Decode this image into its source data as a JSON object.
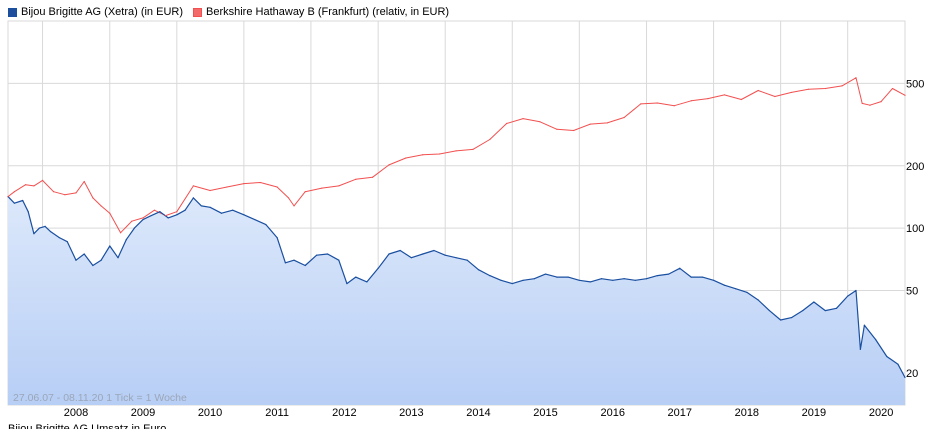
{
  "legend": {
    "series1": "Bijou Brigitte AG (Xetra) (in EUR)",
    "series2": "Berkshire Hathaway B (Frankfurt) (relativ, in EUR)"
  },
  "colors": {
    "series1_line": "#1a4fa0",
    "series1_swatch": "#1f4f9c",
    "series1_fill_top": "#dce8fb",
    "series1_fill_bottom": "#b7cef5",
    "series2_line": "#f25050",
    "series2_swatch": "#f46a6a",
    "grid": "#d9d9d9"
  },
  "footer_note": "27.06.07 - 08.11.20   1 Tick = 1 Woche",
  "bottom_cut_text": "Bijou Brigitte AG Umsatz in Euro",
  "chart_data": {
    "type": "line",
    "x_axis": {
      "type": "date",
      "range": [
        "2007-06-27",
        "2020-11-08"
      ],
      "tick_labels": [
        "2008",
        "2009",
        "2010",
        "2011",
        "2012",
        "2013",
        "2014",
        "2015",
        "2016",
        "2017",
        "2018",
        "2019",
        "2020"
      ]
    },
    "y_axis": {
      "scale": "log",
      "tick_values": [
        20,
        50,
        100,
        200,
        500
      ],
      "range": [
        14,
        1000
      ],
      "position": "right"
    },
    "grid": true,
    "legend_position": "top-left",
    "series": [
      {
        "name": "Bijou Brigitte AG (Xetra) (in EUR)",
        "area_fill": true,
        "points": [
          [
            "2007-06-27",
            142
          ],
          [
            "2007-08-01",
            132
          ],
          [
            "2007-09-15",
            136
          ],
          [
            "2007-10-15",
            120
          ],
          [
            "2007-11-15",
            94
          ],
          [
            "2007-12-15",
            100
          ],
          [
            "2008-01-15",
            102
          ],
          [
            "2008-02-15",
            96
          ],
          [
            "2008-04-01",
            90
          ],
          [
            "2008-05-15",
            86
          ],
          [
            "2008-07-01",
            70
          ],
          [
            "2008-08-15",
            75
          ],
          [
            "2008-10-01",
            66
          ],
          [
            "2008-11-15",
            70
          ],
          [
            "2009-01-01",
            82
          ],
          [
            "2009-02-15",
            72
          ],
          [
            "2009-04-01",
            88
          ],
          [
            "2009-05-15",
            100
          ],
          [
            "2009-07-01",
            110
          ],
          [
            "2009-08-15",
            115
          ],
          [
            "2009-10-01",
            120
          ],
          [
            "2009-11-15",
            112
          ],
          [
            "2010-01-01",
            116
          ],
          [
            "2010-02-15",
            122
          ],
          [
            "2010-04-01",
            140
          ],
          [
            "2010-05-15",
            128
          ],
          [
            "2010-07-01",
            126
          ],
          [
            "2010-09-01",
            118
          ],
          [
            "2010-11-01",
            122
          ],
          [
            "2011-01-01",
            116
          ],
          [
            "2011-03-01",
            110
          ],
          [
            "2011-05-01",
            104
          ],
          [
            "2011-07-01",
            90
          ],
          [
            "2011-08-15",
            68
          ],
          [
            "2011-10-01",
            70
          ],
          [
            "2011-12-01",
            66
          ],
          [
            "2012-02-01",
            74
          ],
          [
            "2012-04-01",
            75
          ],
          [
            "2012-06-01",
            70
          ],
          [
            "2012-07-15",
            54
          ],
          [
            "2012-09-01",
            58
          ],
          [
            "2012-11-01",
            55
          ],
          [
            "2013-01-01",
            64
          ],
          [
            "2013-03-01",
            75
          ],
          [
            "2013-05-01",
            78
          ],
          [
            "2013-07-01",
            72
          ],
          [
            "2013-09-01",
            75
          ],
          [
            "2013-11-01",
            78
          ],
          [
            "2014-01-01",
            74
          ],
          [
            "2014-03-01",
            72
          ],
          [
            "2014-05-01",
            70
          ],
          [
            "2014-07-01",
            63
          ],
          [
            "2014-09-01",
            59
          ],
          [
            "2014-11-01",
            56
          ],
          [
            "2015-01-01",
            54
          ],
          [
            "2015-03-01",
            56
          ],
          [
            "2015-05-01",
            57
          ],
          [
            "2015-07-01",
            60
          ],
          [
            "2015-09-01",
            58
          ],
          [
            "2015-11-01",
            58
          ],
          [
            "2016-01-01",
            56
          ],
          [
            "2016-03-01",
            55
          ],
          [
            "2016-05-01",
            57
          ],
          [
            "2016-07-01",
            56
          ],
          [
            "2016-09-01",
            57
          ],
          [
            "2016-11-01",
            56
          ],
          [
            "2017-01-01",
            57
          ],
          [
            "2017-03-01",
            59
          ],
          [
            "2017-05-01",
            60
          ],
          [
            "2017-07-01",
            64
          ],
          [
            "2017-09-01",
            58
          ],
          [
            "2017-11-01",
            58
          ],
          [
            "2018-01-01",
            56
          ],
          [
            "2018-03-01",
            53
          ],
          [
            "2018-05-01",
            51
          ],
          [
            "2018-07-01",
            49
          ],
          [
            "2018-09-01",
            45
          ],
          [
            "2018-11-01",
            40
          ],
          [
            "2019-01-01",
            36
          ],
          [
            "2019-03-01",
            37
          ],
          [
            "2019-05-01",
            40
          ],
          [
            "2019-07-01",
            44
          ],
          [
            "2019-09-01",
            40
          ],
          [
            "2019-11-01",
            41
          ],
          [
            "2020-01-01",
            47
          ],
          [
            "2020-02-15",
            50
          ],
          [
            "2020-03-10",
            26
          ],
          [
            "2020-04-01",
            34
          ],
          [
            "2020-06-01",
            29
          ],
          [
            "2020-08-01",
            24
          ],
          [
            "2020-10-01",
            22
          ],
          [
            "2020-11-08",
            19
          ]
        ]
      },
      {
        "name": "Berkshire Hathaway B (Frankfurt) (relativ, in EUR)",
        "area_fill": false,
        "points": [
          [
            "2007-06-27",
            142
          ],
          [
            "2007-08-01",
            150
          ],
          [
            "2007-10-01",
            162
          ],
          [
            "2007-11-15",
            160
          ],
          [
            "2008-01-01",
            170
          ],
          [
            "2008-03-01",
            150
          ],
          [
            "2008-05-01",
            145
          ],
          [
            "2008-07-01",
            148
          ],
          [
            "2008-08-15",
            168
          ],
          [
            "2008-10-01",
            140
          ],
          [
            "2008-11-15",
            128
          ],
          [
            "2009-01-01",
            118
          ],
          [
            "2009-03-01",
            95
          ],
          [
            "2009-05-01",
            108
          ],
          [
            "2009-07-01",
            112
          ],
          [
            "2009-09-01",
            122
          ],
          [
            "2009-11-01",
            115
          ],
          [
            "2010-01-01",
            120
          ],
          [
            "2010-04-01",
            160
          ],
          [
            "2010-07-01",
            152
          ],
          [
            "2010-10-01",
            158
          ],
          [
            "2011-01-01",
            164
          ],
          [
            "2011-04-01",
            166
          ],
          [
            "2011-07-01",
            158
          ],
          [
            "2011-09-01",
            140
          ],
          [
            "2011-10-01",
            128
          ],
          [
            "2011-12-01",
            150
          ],
          [
            "2012-03-01",
            156
          ],
          [
            "2012-06-01",
            160
          ],
          [
            "2012-09-01",
            172
          ],
          [
            "2012-12-01",
            176
          ],
          [
            "2013-03-01",
            202
          ],
          [
            "2013-06-01",
            218
          ],
          [
            "2013-09-01",
            226
          ],
          [
            "2013-12-01",
            228
          ],
          [
            "2014-03-01",
            236
          ],
          [
            "2014-06-01",
            240
          ],
          [
            "2014-09-01",
            268
          ],
          [
            "2014-12-01",
            320
          ],
          [
            "2015-03-01",
            338
          ],
          [
            "2015-06-01",
            326
          ],
          [
            "2015-09-01",
            300
          ],
          [
            "2015-12-01",
            296
          ],
          [
            "2016-03-01",
            318
          ],
          [
            "2016-06-01",
            322
          ],
          [
            "2016-09-01",
            342
          ],
          [
            "2016-12-01",
            398
          ],
          [
            "2017-03-01",
            402
          ],
          [
            "2017-06-01",
            390
          ],
          [
            "2017-09-01",
            412
          ],
          [
            "2017-12-01",
            422
          ],
          [
            "2018-03-01",
            440
          ],
          [
            "2018-06-01",
            418
          ],
          [
            "2018-09-01",
            462
          ],
          [
            "2018-12-01",
            432
          ],
          [
            "2019-03-01",
            452
          ],
          [
            "2019-06-01",
            468
          ],
          [
            "2019-09-01",
            472
          ],
          [
            "2019-12-01",
            486
          ],
          [
            "2020-02-15",
            532
          ],
          [
            "2020-03-20",
            400
          ],
          [
            "2020-05-01",
            392
          ],
          [
            "2020-07-01",
            408
          ],
          [
            "2020-09-01",
            472
          ],
          [
            "2020-11-08",
            438
          ]
        ]
      }
    ]
  }
}
